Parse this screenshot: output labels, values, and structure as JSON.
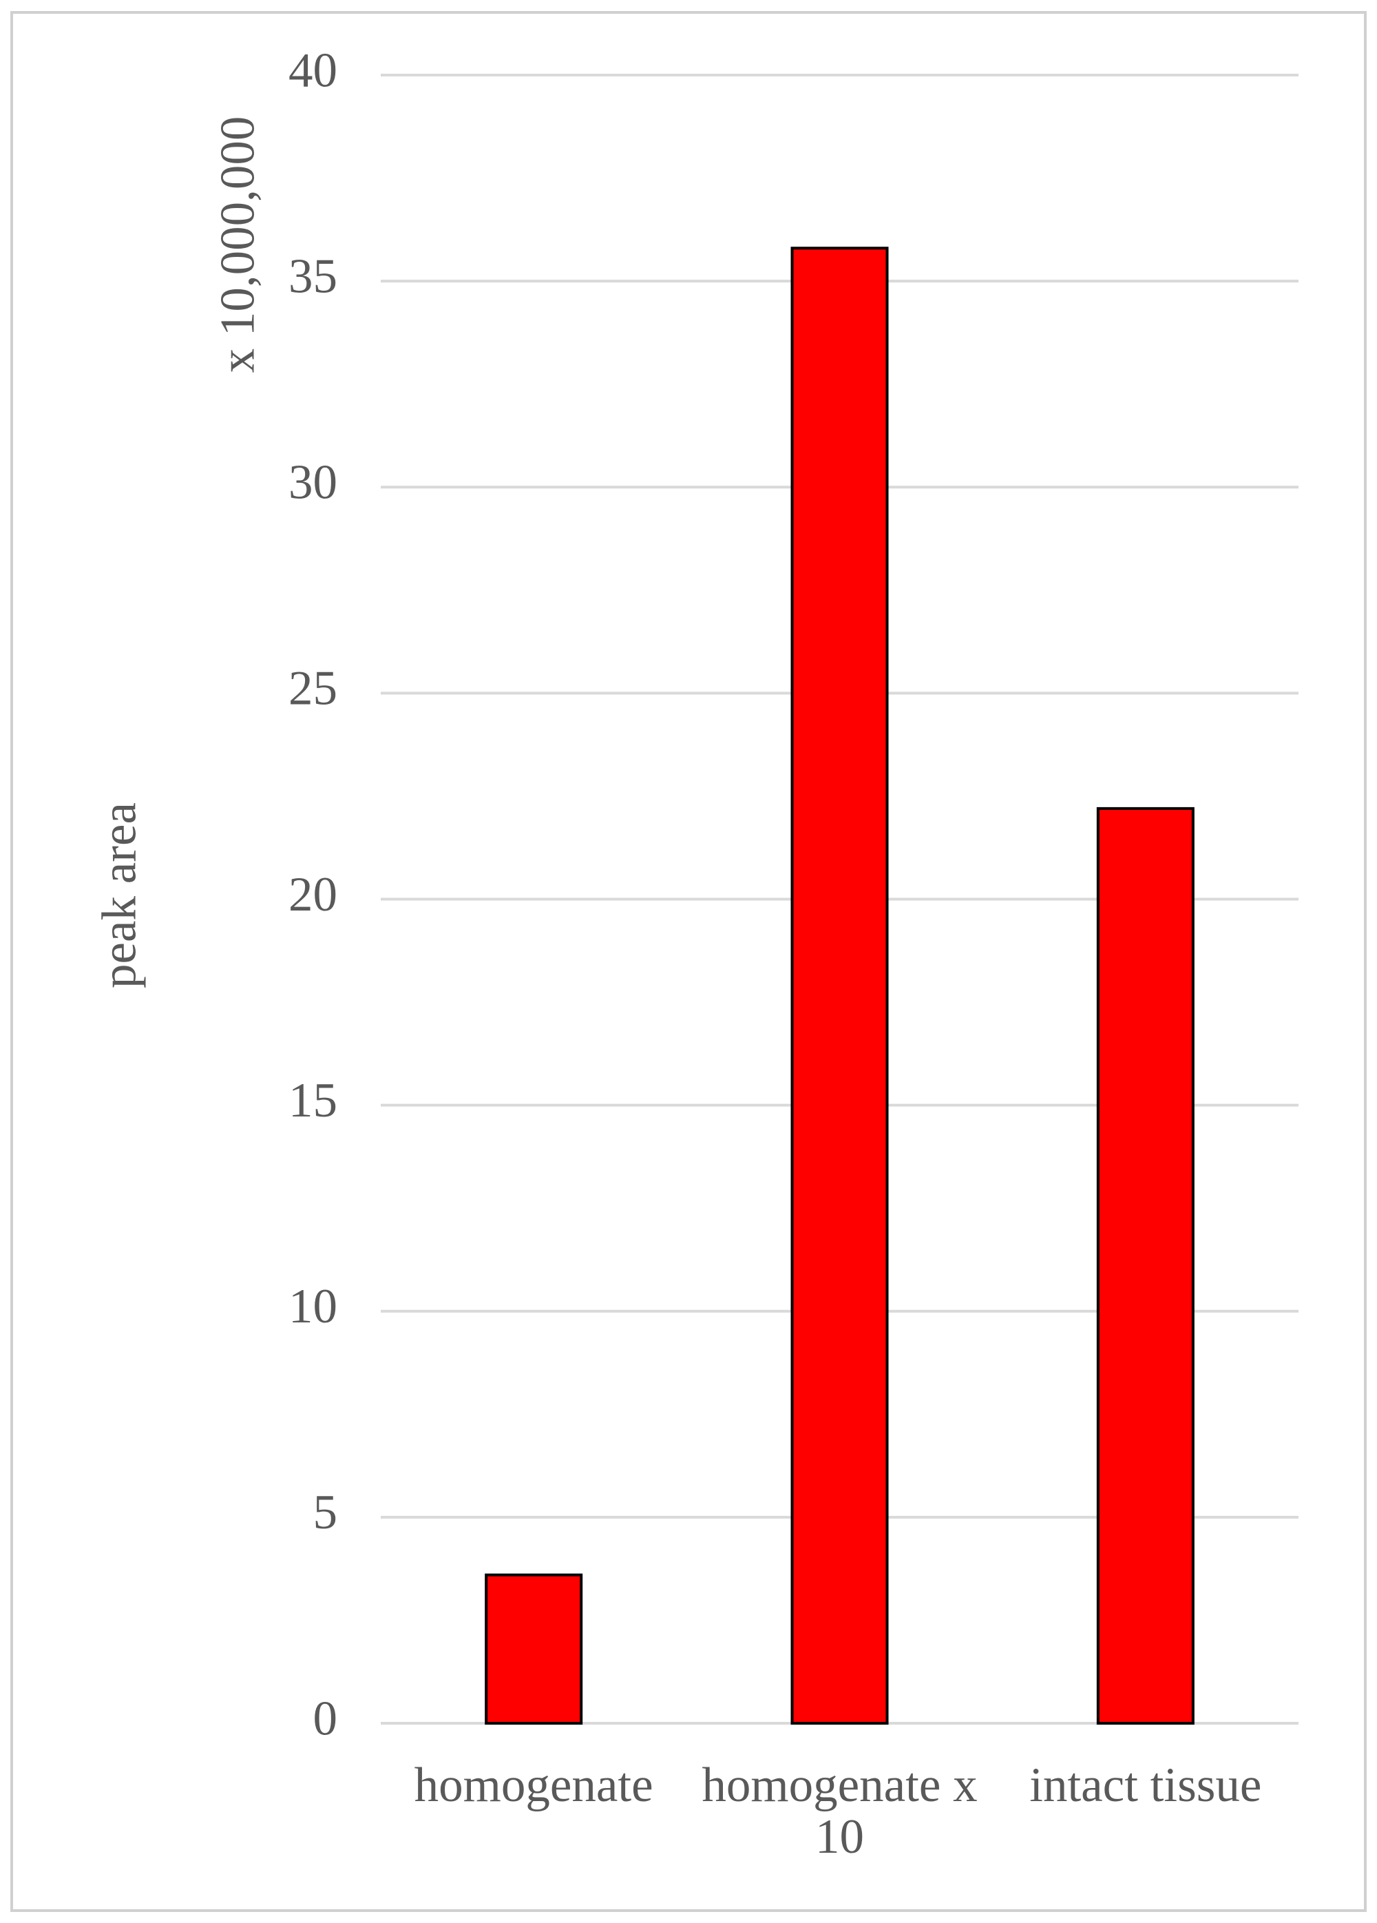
{
  "chart_data": {
    "type": "bar",
    "y_label": "peak area",
    "y_unit_label": "x 10,000,000",
    "categories": [
      "homogenate",
      "homogenate x 10",
      "intact tissue"
    ],
    "values": [
      3.6,
      35.8,
      22.2
    ],
    "color": "#ff0000",
    "ylim": [
      0,
      40
    ],
    "yticks": [
      0,
      5,
      10,
      15,
      20,
      25,
      30,
      35,
      40
    ],
    "grid": true
  }
}
